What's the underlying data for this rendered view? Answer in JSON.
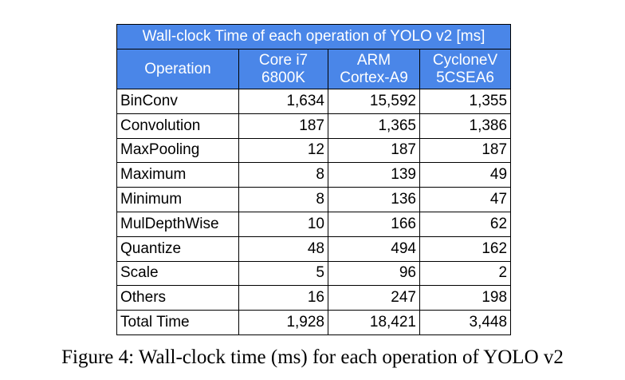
{
  "table": {
    "title": "Wall-clock Time of each operation of YOLO v2 [ms]",
    "header_color": "#4a86e8",
    "columns": [
      {
        "lines": [
          "Operation"
        ]
      },
      {
        "lines": [
          "Core i7",
          "6800K"
        ]
      },
      {
        "lines": [
          "ARM",
          "Cortex-A9"
        ]
      },
      {
        "lines": [
          "CycloneV",
          "5CSEA6"
        ]
      }
    ],
    "rows": [
      {
        "op": "BinConv",
        "core_i7": "1,634",
        "arm": "15,592",
        "cyclonev": "1,355"
      },
      {
        "op": "Convolution",
        "core_i7": "187",
        "arm": "1,365",
        "cyclonev": "1,386"
      },
      {
        "op": "MaxPooling",
        "core_i7": "12",
        "arm": "187",
        "cyclonev": "187"
      },
      {
        "op": "Maximum",
        "core_i7": "8",
        "arm": "139",
        "cyclonev": "49"
      },
      {
        "op": "Minimum",
        "core_i7": "8",
        "arm": "136",
        "cyclonev": "47"
      },
      {
        "op": "MulDepthWise",
        "core_i7": "10",
        "arm": "166",
        "cyclonev": "62"
      },
      {
        "op": "Quantize",
        "core_i7": "48",
        "arm": "494",
        "cyclonev": "162"
      },
      {
        "op": "Scale",
        "core_i7": "5",
        "arm": "96",
        "cyclonev": "2"
      },
      {
        "op": "Others",
        "core_i7": "16",
        "arm": "247",
        "cyclonev": "198"
      },
      {
        "op": "Total Time",
        "core_i7": "1,928",
        "arm": "18,421",
        "cyclonev": "3,448"
      }
    ]
  },
  "caption": "Figure 4: Wall-clock time (ms) for each operation of YOLO v2"
}
